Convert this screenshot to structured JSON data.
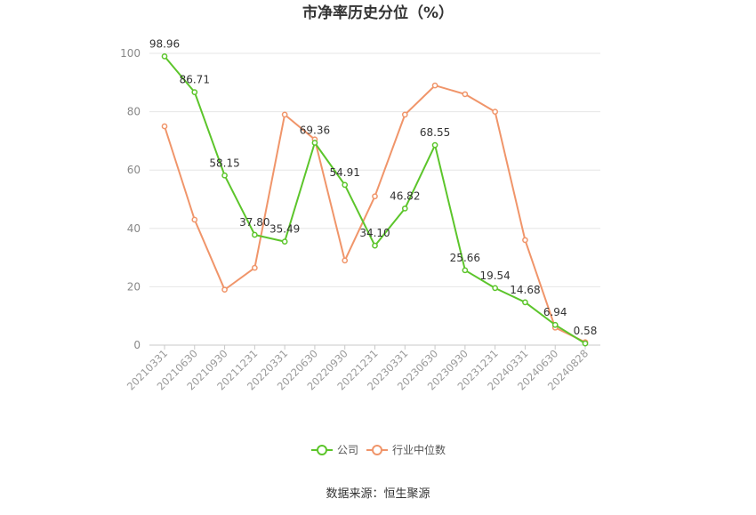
{
  "chart_data": {
    "type": "line",
    "title": "市净率历史分位（%）",
    "x": [
      "20210331",
      "20210630",
      "20210930",
      "20211231",
      "20220331",
      "20220630",
      "20220930",
      "20221231",
      "20230331",
      "20230630",
      "20230930",
      "20231231",
      "20240331",
      "20240630",
      "20240828"
    ],
    "ylim": [
      0,
      100
    ],
    "yticks": [
      0,
      20,
      40,
      60,
      80,
      100
    ],
    "grid": true,
    "legend_position": "bottom",
    "series": [
      {
        "name": "公司",
        "color": "#5cc52b",
        "values": [
          98.96,
          86.71,
          58.15,
          37.8,
          35.49,
          69.36,
          54.91,
          34.1,
          46.82,
          68.55,
          25.66,
          19.54,
          14.68,
          6.94,
          0.58
        ],
        "labels": [
          "98.96",
          "86.71",
          "58.15",
          "37.80",
          "35.49",
          "69.36",
          "54.91",
          "34.10",
          "46.82",
          "68.55",
          "25.66",
          "19.54",
          "14.68",
          "6.94",
          "0.58"
        ]
      },
      {
        "name": "行业中位数",
        "color": "#f0956a",
        "values": [
          75,
          43,
          19,
          26.5,
          79,
          70.5,
          29,
          51,
          79,
          89,
          86,
          80,
          36,
          6,
          1
        ]
      }
    ],
    "source": "数据来源：恒生聚源"
  }
}
